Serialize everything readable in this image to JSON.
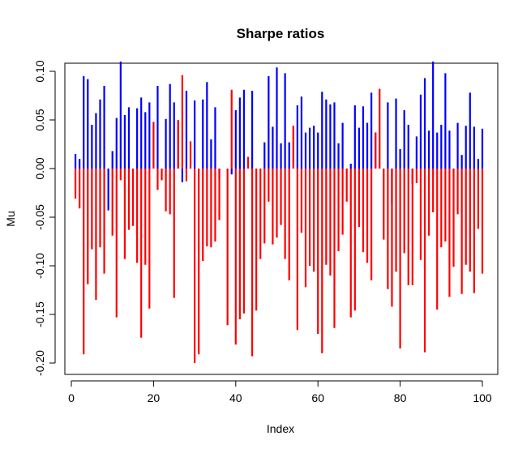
{
  "chart_data": {
    "type": "bar",
    "title": "Sharpe ratios",
    "xlabel": "Index",
    "ylabel": "Mu",
    "xlim": [
      0,
      100
    ],
    "ylim": [
      -0.2,
      0.1
    ],
    "xticks": [
      0,
      20,
      40,
      60,
      80,
      100
    ],
    "yticks": [
      -0.2,
      -0.15,
      -0.1,
      -0.05,
      0.0,
      0.05,
      0.1
    ],
    "ytick_labels": [
      "-0.20",
      "-0.15",
      "-0.10",
      "-0.05",
      "0.00",
      "0.05",
      "0.10"
    ],
    "grid": false,
    "colors": {
      "positive": "#0000ff",
      "negative": "#ff0000",
      "axes": "#000000"
    },
    "x": [
      1,
      2,
      3,
      4,
      5,
      6,
      7,
      8,
      9,
      10,
      11,
      12,
      13,
      14,
      15,
      16,
      17,
      18,
      19,
      20,
      21,
      22,
      23,
      24,
      25,
      26,
      27,
      28,
      29,
      30,
      31,
      32,
      33,
      34,
      35,
      36,
      37,
      38,
      39,
      40,
      41,
      42,
      43,
      44,
      45,
      46,
      47,
      48,
      49,
      50,
      51,
      52,
      53,
      54,
      55,
      56,
      57,
      58,
      59,
      60,
      61,
      62,
      63,
      64,
      65,
      66,
      67,
      68,
      69,
      70,
      71,
      72,
      73,
      74,
      75,
      76,
      77,
      78,
      79,
      80,
      81,
      82,
      83,
      84,
      85,
      86,
      87,
      88,
      89,
      90,
      91,
      92,
      93,
      94,
      95,
      96,
      97,
      98,
      99,
      100
    ],
    "series": [
      {
        "color_key": "positive",
        "values": [
          0.015,
          0.01,
          0.095,
          0.092,
          0.045,
          0.057,
          0.071,
          0.085,
          -0.043,
          0.018,
          0.052,
          0.11,
          0.055,
          0.063,
          0.0,
          0.062,
          0.073,
          0.058,
          0.068,
          0.0,
          0.085,
          0.0,
          0.051,
          0.087,
          0.068,
          0.049,
          -0.014,
          0.08,
          0.0,
          0.07,
          0.0,
          0.071,
          0.089,
          0.03,
          0.063,
          -0.01,
          0.0,
          0.0,
          -0.006,
          0.06,
          0.073,
          0.081,
          0.0,
          0.08,
          0.0,
          0.0,
          0.027,
          0.095,
          0.043,
          0.104,
          0.026,
          0.098,
          0.027,
          0.0,
          0.065,
          0.074,
          0.037,
          0.042,
          0.044,
          0.037,
          0.079,
          0.071,
          0.066,
          0.068,
          0.026,
          0.047,
          0.0,
          0.005,
          0.065,
          0.042,
          0.064,
          0.047,
          0.078,
          0.037,
          0.0,
          0.0,
          0.068,
          -0.036,
          0.072,
          0.02,
          0.06,
          0.045,
          -0.016,
          0.033,
          0.076,
          0.093,
          0.039,
          0.11,
          0.037,
          0.045,
          0.098,
          0.039,
          0.0,
          0.047,
          0.014,
          0.044,
          0.078,
          0.043,
          0.01,
          0.041
        ]
      },
      {
        "color_key": "negative",
        "values": [
          -0.031,
          -0.041,
          -0.191,
          -0.119,
          -0.083,
          -0.135,
          -0.081,
          -0.108,
          0.0,
          -0.069,
          -0.153,
          -0.012,
          -0.093,
          -0.063,
          -0.059,
          -0.097,
          -0.174,
          -0.099,
          -0.144,
          0.048,
          -0.022,
          -0.012,
          -0.044,
          -0.047,
          -0.133,
          0.05,
          0.096,
          -0.013,
          0.028,
          -0.2,
          -0.191,
          -0.095,
          -0.08,
          -0.081,
          -0.075,
          -0.053,
          0.0,
          -0.161,
          0.081,
          -0.181,
          -0.155,
          -0.149,
          0.012,
          -0.193,
          -0.146,
          -0.093,
          -0.077,
          -0.034,
          -0.078,
          -0.071,
          -0.058,
          -0.093,
          -0.115,
          0.044,
          -0.166,
          -0.066,
          -0.122,
          -0.1,
          -0.106,
          -0.17,
          -0.19,
          -0.099,
          -0.11,
          -0.164,
          -0.085,
          -0.068,
          -0.034,
          -0.153,
          -0.146,
          -0.06,
          -0.086,
          -0.097,
          -0.115,
          0.037,
          0.082,
          -0.073,
          -0.124,
          -0.142,
          -0.106,
          -0.185,
          -0.087,
          -0.12,
          -0.12,
          -0.015,
          -0.094,
          -0.189,
          -0.069,
          -0.045,
          -0.145,
          -0.081,
          -0.075,
          -0.132,
          -0.101,
          -0.047,
          -0.129,
          -0.099,
          -0.106,
          -0.128,
          -0.062,
          -0.108
        ]
      }
    ]
  }
}
